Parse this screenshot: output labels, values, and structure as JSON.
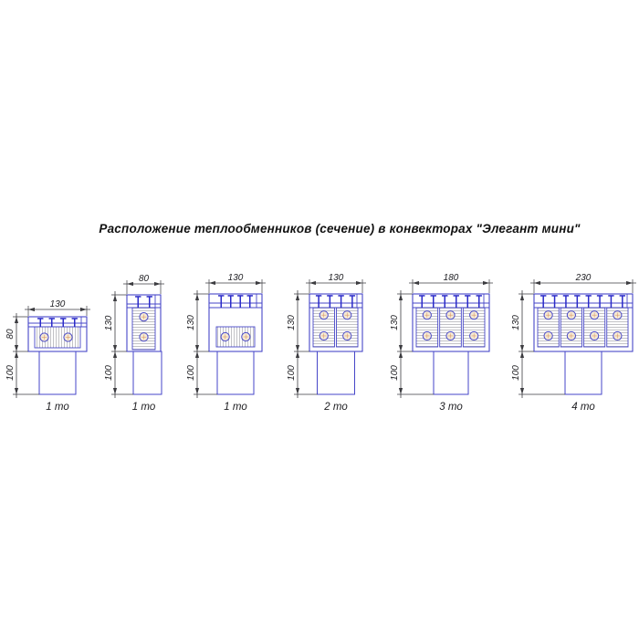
{
  "title": "Расположение теплообменников (сечение) в конвекторах \"Элегант мини\"",
  "colors": {
    "line_blue": "#4646c8",
    "pin_blue": "#2a2ac8",
    "hatch_gray": "#b2b2b8",
    "dim_dark": "#3c3c40",
    "text_black": "#1e1e22",
    "tube_fill": "#f4e9d4",
    "tube_center": "#d98c55",
    "background": "#ffffff"
  },
  "diagrams": [
    {
      "label": "1 то",
      "width_mm": "130",
      "height_mm": "80",
      "depth_mm": "100",
      "heat_exchangers": 1,
      "tubes": 2,
      "pins": 4,
      "variant": "horizontal-top"
    },
    {
      "label": "1 то",
      "width_mm": "80",
      "height_mm": "130",
      "depth_mm": "100",
      "heat_exchangers": 1,
      "tubes": 2,
      "pins": 2,
      "variant": "vertical"
    },
    {
      "label": "1 то",
      "width_mm": "130",
      "height_mm": "130",
      "depth_mm": "100",
      "heat_exchangers": 1,
      "tubes": 2,
      "pins": 4,
      "variant": "horizontal-bottom"
    },
    {
      "label": "2 то",
      "width_mm": "130",
      "height_mm": "130",
      "depth_mm": "100",
      "heat_exchangers": 2,
      "tubes": 4,
      "pins": 4,
      "variant": "vertical-multi"
    },
    {
      "label": "3 то",
      "width_mm": "180",
      "height_mm": "130",
      "depth_mm": "100",
      "heat_exchangers": 3,
      "tubes": 6,
      "pins": 6,
      "variant": "vertical-multi"
    },
    {
      "label": "4 то",
      "width_mm": "230",
      "height_mm": "130",
      "depth_mm": "100",
      "heat_exchangers": 4,
      "tubes": 8,
      "pins": 8,
      "variant": "vertical-multi"
    }
  ]
}
